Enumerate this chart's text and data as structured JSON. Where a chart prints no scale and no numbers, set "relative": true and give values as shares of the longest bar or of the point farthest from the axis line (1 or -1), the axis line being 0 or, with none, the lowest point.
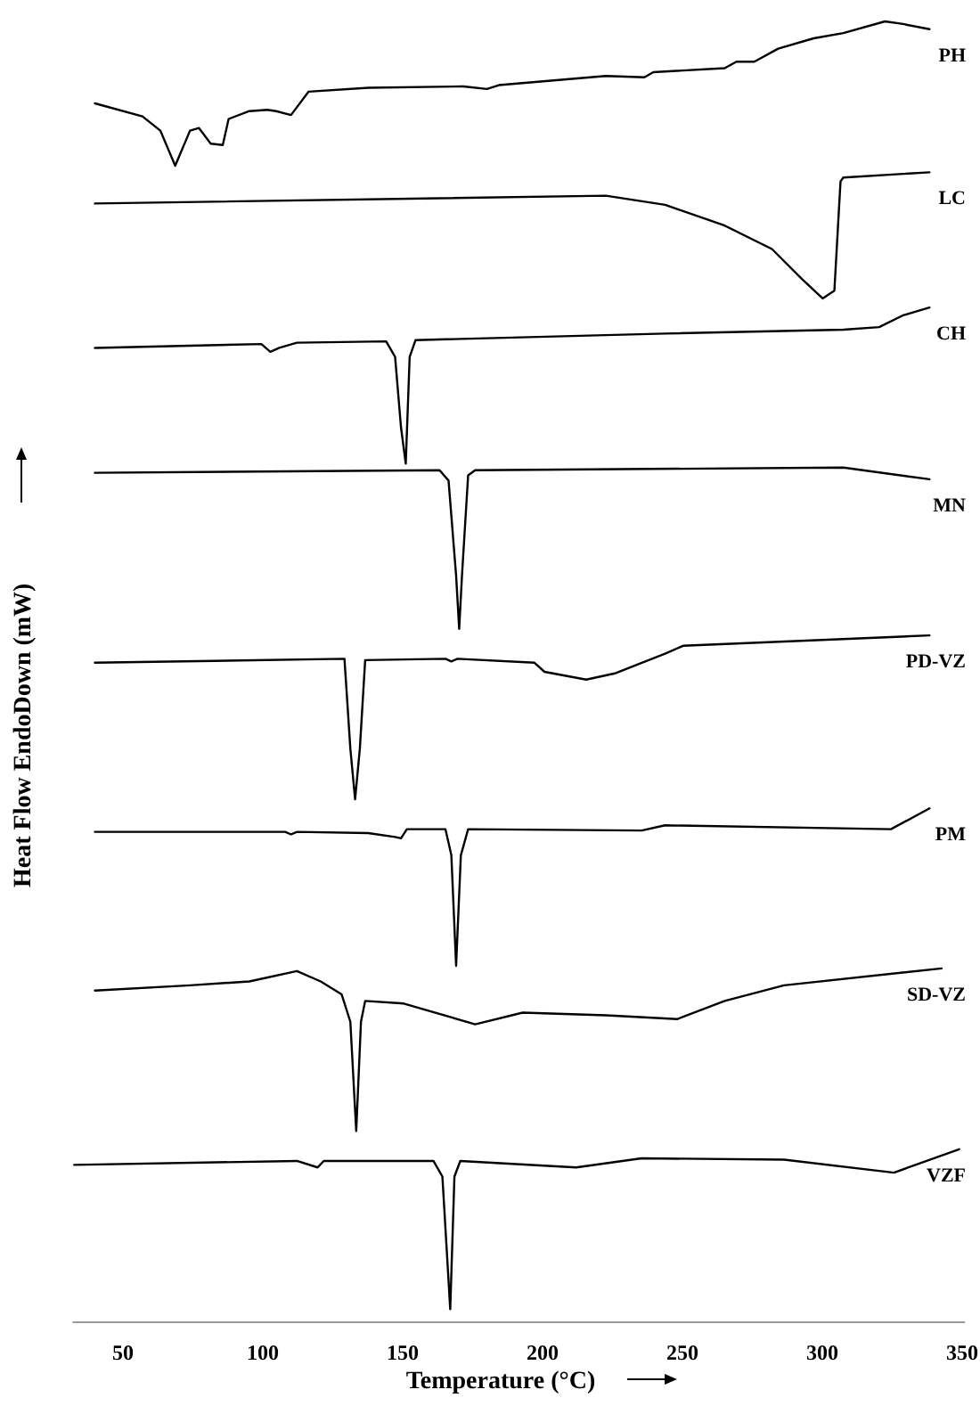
{
  "chart_data": {
    "type": "line",
    "relative": true,
    "xlabel": "Temperature (°C)",
    "ylabel": "Heat Flow EndoDown (mW)",
    "xlim": [
      32,
      351
    ],
    "xticks": [
      50,
      100,
      150,
      200,
      250,
      300,
      350
    ],
    "grid": false,
    "legend": false,
    "marker": "none",
    "line_style": "solid",
    "series": [
      {
        "name": "PH",
        "color": "#000000",
        "x": [
          40.0,
          57.0,
          63.4,
          68.7,
          74.0,
          77.2,
          81.4,
          85.7,
          87.8,
          95.2,
          101.6,
          104.8,
          110.1,
          116.4,
          137.7,
          171.7,
          180.1,
          184.4,
          222.6,
          236.4,
          239.6,
          265.1,
          269.3,
          275.7,
          284.2,
          296.9,
          307.5,
          322.4,
          328.8,
          338.3
        ],
        "values": [
          0.937,
          0.927,
          0.916,
          0.889,
          0.916,
          0.918,
          0.906,
          0.905,
          0.925,
          0.931,
          0.932,
          0.931,
          0.928,
          0.946,
          0.949,
          0.95,
          0.948,
          0.951,
          0.958,
          0.957,
          0.961,
          0.964,
          0.969,
          0.969,
          0.979,
          0.987,
          0.991,
          1,
          0.998,
          0.994
        ]
      },
      {
        "name": "LC",
        "color": "#000000",
        "x": [
          40.0,
          222.6,
          243.8,
          265.1,
          282.0,
          292.7,
          300.1,
          304.3,
          306.5,
          307.5,
          338.3
        ],
        "values": [
          0.86,
          0.866,
          0.859,
          0.843,
          0.825,
          0.802,
          0.787,
          0.793,
          0.877,
          0.88,
          0.884
        ]
      },
      {
        "name": "CH",
        "color": "#000000",
        "x": [
          40.0,
          99.5,
          102.7,
          105.9,
          112.2,
          144.1,
          147.3,
          149.4,
          151.1,
          152.5,
          154.6,
          243.8,
          307.5,
          320.3,
          328.8,
          338.3
        ],
        "values": [
          0.749,
          0.752,
          0.746,
          0.749,
          0.753,
          0.754,
          0.742,
          0.688,
          0.66,
          0.742,
          0.755,
          0.76,
          0.763,
          0.765,
          0.774,
          0.78
        ]
      },
      {
        "name": "MN",
        "color": "#000000",
        "x": [
          40.0,
          163.2,
          166.4,
          169.1,
          170.2,
          171.2,
          173.4,
          175.9,
          307.5,
          338.3
        ],
        "values": [
          0.653,
          0.655,
          0.647,
          0.574,
          0.533,
          0.574,
          0.651,
          0.655,
          0.657,
          0.648
        ]
      },
      {
        "name": "PD-VZ",
        "color": "#000000",
        "x": [
          40.0,
          129.2,
          131.3,
          133.0,
          134.7,
          136.6,
          165.3,
          167.4,
          169.6,
          197.1,
          200.7,
          215.6,
          226.2,
          243.8,
          250.2,
          338.3
        ],
        "values": [
          0.507,
          0.51,
          0.441,
          0.402,
          0.441,
          0.509,
          0.51,
          0.508,
          0.51,
          0.507,
          0.5,
          0.494,
          0.499,
          0.514,
          0.52,
          0.528
        ]
      },
      {
        "name": "PM",
        "color": "#000000",
        "x": [
          40.0,
          108.0,
          110.1,
          112.2,
          137.7,
          147.3,
          149.4,
          151.5,
          165.3,
          167.4,
          169.1,
          170.8,
          173.4,
          235.4,
          243.8,
          324.5,
          338.3
        ],
        "values": [
          0.377,
          0.377,
          0.375,
          0.377,
          0.376,
          0.373,
          0.372,
          0.379,
          0.379,
          0.359,
          0.274,
          0.359,
          0.379,
          0.378,
          0.382,
          0.379,
          0.395
        ]
      },
      {
        "name": "SD-VZ",
        "color": "#000000",
        "x": [
          40.0,
          74.0,
          95.2,
          112.2,
          120.7,
          128.2,
          131.3,
          133.4,
          135.1,
          136.6,
          150.4,
          175.9,
          192.9,
          222.6,
          248.1,
          265.1,
          286.3,
          342.6
        ],
        "values": [
          0.255,
          0.259,
          0.262,
          0.27,
          0.262,
          0.252,
          0.231,
          0.147,
          0.231,
          0.247,
          0.245,
          0.229,
          0.238,
          0.236,
          0.233,
          0.247,
          0.259,
          0.272
        ]
      },
      {
        "name": "VZF",
        "color": "#000000",
        "x": [
          32.6,
          112.2,
          119.6,
          121.8,
          161.0,
          164.2,
          167.0,
          168.5,
          170.6,
          212.0,
          235.4,
          286.3,
          325.6,
          348.9
        ],
        "values": [
          0.121,
          0.124,
          0.119,
          0.124,
          0.124,
          0.112,
          0.01,
          0.112,
          0.124,
          0.119,
          0.126,
          0.125,
          0.115,
          0.133
        ]
      }
    ]
  }
}
